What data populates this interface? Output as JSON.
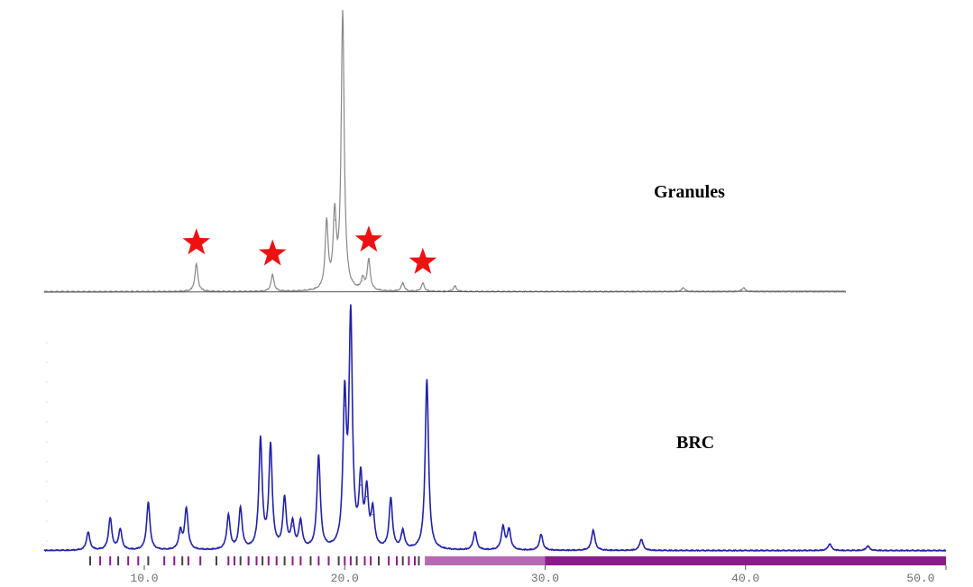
{
  "chart_data": {
    "type": "line",
    "xlim": [
      5,
      50
    ],
    "x_ticks": [
      10,
      20,
      30,
      40,
      50
    ],
    "x_tick_labels": [
      "10.0",
      "20.0",
      "30.0",
      "40.0",
      "50.0"
    ],
    "grid": false,
    "series": [
      {
        "name": "Granules",
        "color": "#888888",
        "x_range": [
          5,
          45
        ],
        "peaks": [
          {
            "x": 12.6,
            "y": 10
          },
          {
            "x": 16.4,
            "y": 6
          },
          {
            "x": 19.1,
            "y": 24
          },
          {
            "x": 19.5,
            "y": 26
          },
          {
            "x": 19.9,
            "y": 100
          },
          {
            "x": 20.9,
            "y": 4
          },
          {
            "x": 21.2,
            "y": 11
          },
          {
            "x": 22.9,
            "y": 3
          },
          {
            "x": 23.9,
            "y": 3
          },
          {
            "x": 25.5,
            "y": 2
          },
          {
            "x": 36.9,
            "y": 1.5
          },
          {
            "x": 39.9,
            "y": 1.5
          }
        ],
        "markers": [
          12.6,
          16.4,
          21.2,
          23.9
        ]
      },
      {
        "name": "BRC",
        "color": "#2222aa",
        "x_range": [
          5,
          50
        ],
        "peaks": [
          {
            "x": 7.2,
            "y": 8
          },
          {
            "x": 8.3,
            "y": 14
          },
          {
            "x": 8.8,
            "y": 9
          },
          {
            "x": 10.2,
            "y": 21
          },
          {
            "x": 11.8,
            "y": 8
          },
          {
            "x": 12.1,
            "y": 18
          },
          {
            "x": 14.2,
            "y": 15
          },
          {
            "x": 14.8,
            "y": 18
          },
          {
            "x": 15.8,
            "y": 48
          },
          {
            "x": 16.3,
            "y": 45
          },
          {
            "x": 17.0,
            "y": 22
          },
          {
            "x": 17.4,
            "y": 11
          },
          {
            "x": 17.8,
            "y": 12
          },
          {
            "x": 18.7,
            "y": 41
          },
          {
            "x": 20.0,
            "y": 64
          },
          {
            "x": 20.3,
            "y": 100
          },
          {
            "x": 20.8,
            "y": 29
          },
          {
            "x": 21.1,
            "y": 24
          },
          {
            "x": 21.4,
            "y": 16
          },
          {
            "x": 22.3,
            "y": 22
          },
          {
            "x": 22.9,
            "y": 8
          },
          {
            "x": 24.1,
            "y": 75
          },
          {
            "x": 26.5,
            "y": 8
          },
          {
            "x": 27.9,
            "y": 10
          },
          {
            "x": 28.2,
            "y": 9
          },
          {
            "x": 29.8,
            "y": 7
          },
          {
            "x": 32.4,
            "y": 9
          },
          {
            "x": 34.8,
            "y": 5
          },
          {
            "x": 44.2,
            "y": 3
          },
          {
            "x": 46.1,
            "y": 2
          }
        ]
      }
    ],
    "reference_ticks": {
      "color": "#8a1c8a",
      "x": [
        7.3,
        7.8,
        8.3,
        8.7,
        9.2,
        9.7,
        10.2,
        11.0,
        11.5,
        11.9,
        12.2,
        12.8,
        13.6,
        14.2,
        14.5,
        14.8,
        15.2,
        15.6,
        15.9,
        16.2,
        16.6,
        17.0,
        17.4,
        17.8,
        18.3,
        18.7,
        19.2,
        19.7,
        20.0,
        20.3,
        20.6,
        21.0,
        21.3,
        21.7,
        22.2,
        22.6,
        22.9,
        23.2,
        23.5,
        23.7
      ]
    }
  },
  "labels": {
    "granules": "Granules",
    "brc": "BRC"
  }
}
